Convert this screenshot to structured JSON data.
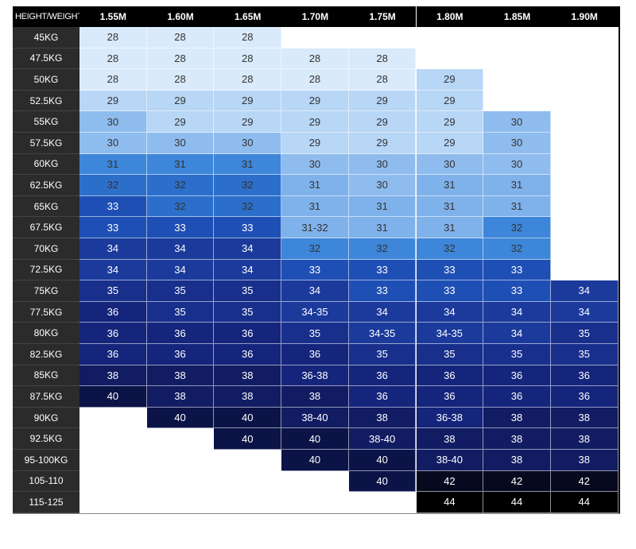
{
  "header": {
    "corner_label": "HEIGHT/WEIGHT",
    "heights": [
      "1.55M",
      "1.60M",
      "1.65M",
      "1.70M",
      "1.75M",
      "1.80M",
      "1.85M",
      "1.90M"
    ]
  },
  "weights": [
    "45KG",
    "47.5KG",
    "50KG",
    "52.5KG",
    "55KG",
    "57.5KG",
    "60KG",
    "62.5KG",
    "65KG",
    "67.5KG",
    "70KG",
    "72.5KG",
    "75KG",
    "77.5KG",
    "80KG",
    "82.5KG",
    "85KG",
    "87.5KG",
    "90KG",
    "92.5KG",
    "95-100KG",
    "105-110",
    "115-125"
  ],
  "sizes": [
    [
      "28",
      "28",
      "28",
      "",
      "",
      "",
      "",
      ""
    ],
    [
      "28",
      "28",
      "28",
      "28",
      "28",
      "",
      "",
      ""
    ],
    [
      "28",
      "28",
      "28",
      "28",
      "28",
      "29",
      "",
      ""
    ],
    [
      "29",
      "29",
      "29",
      "29",
      "29",
      "29",
      "",
      ""
    ],
    [
      "30",
      "29",
      "29",
      "29",
      "29",
      "29",
      "30",
      ""
    ],
    [
      "30",
      "30",
      "30",
      "29",
      "29",
      "29",
      "30",
      ""
    ],
    [
      "31",
      "31",
      "31",
      "30",
      "30",
      "30",
      "30",
      ""
    ],
    [
      "32",
      "32",
      "32",
      "31",
      "30",
      "31",
      "31",
      ""
    ],
    [
      "33",
      "32",
      "32",
      "31",
      "31",
      "31",
      "31",
      ""
    ],
    [
      "33",
      "33",
      "33",
      "31-32",
      "31",
      "31",
      "32",
      ""
    ],
    [
      "34",
      "34",
      "34",
      "32",
      "32",
      "32",
      "32",
      ""
    ],
    [
      "34",
      "34",
      "34",
      "33",
      "33",
      "33",
      "33",
      ""
    ],
    [
      "35",
      "35",
      "35",
      "34",
      "33",
      "33",
      "33",
      "34"
    ],
    [
      "36",
      "35",
      "35",
      "34-35",
      "34",
      "34",
      "34",
      "34"
    ],
    [
      "36",
      "36",
      "36",
      "35",
      "34-35",
      "34-35",
      "34",
      "35"
    ],
    [
      "36",
      "36",
      "36",
      "36",
      "35",
      "35",
      "35",
      "35"
    ],
    [
      "38",
      "38",
      "38",
      "36-38",
      "36",
      "36",
      "36",
      "36"
    ],
    [
      "40",
      "38",
      "38",
      "38",
      "36",
      "36",
      "36",
      "36"
    ],
    [
      "",
      "40",
      "40",
      "38-40",
      "38",
      "36-38",
      "38",
      "38"
    ],
    [
      "",
      "",
      "40",
      "40",
      "38-40",
      "38",
      "38",
      "38"
    ],
    [
      "",
      "",
      "",
      "40",
      "40",
      "38-40",
      "38",
      "38"
    ],
    [
      "",
      "",
      "",
      "",
      "40",
      "42",
      "42",
      "42"
    ],
    [
      "",
      "",
      "",
      "",
      "",
      "44",
      "44",
      "44"
    ]
  ],
  "colors": {
    "28": "#d9eafb",
    "29": "#b8d6f6",
    "30": "#8fbcee",
    "31-light": "#7fb2ea",
    "31": "#3d86d9",
    "32": "#2c6fcb",
    "33": "#1e4fb4",
    "34": "#1b3a9c",
    "35": "#182f8c",
    "36": "#15257b",
    "38": "#111c62",
    "40": "#0c1347",
    "42": "#070a1f",
    "44": "#000000"
  }
}
